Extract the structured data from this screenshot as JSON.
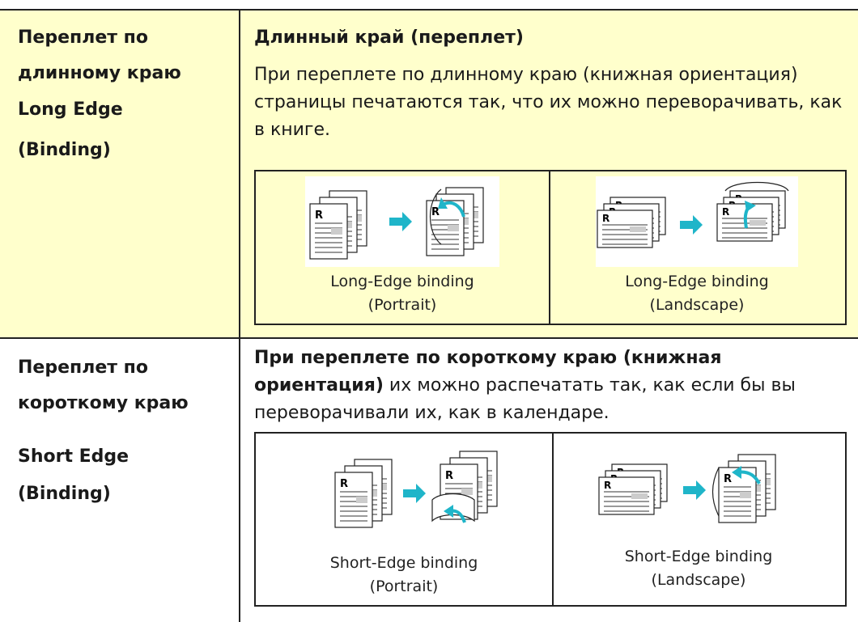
{
  "table": {
    "rows": [
      {
        "label": [
          "Переплет по",
          "длинному краю",
          "Long Edge",
          "(Binding)"
        ],
        "heading": "Длинный край (переплет)",
        "text": "При переплете по длинному краю (книжная ориентация) страницы печатаются так, что их можно переворачивать, как в книге.",
        "figures": [
          {
            "caption": [
              "Long-Edge binding",
              "(Portrait)"
            ]
          },
          {
            "caption": [
              "Long-Edge binding",
              "(Landscape)"
            ]
          }
        ]
      },
      {
        "label": [
          "Переплет по",
          "короткому краю",
          "Short Edge",
          "(Binding)"
        ],
        "text_bold": "При переплете по короткому краю (книжная ориентация)",
        "text": "их можно распечатать так, как если бы вы переворачивали их, как в календаре.",
        "figures": [
          {
            "caption": [
              "Short-Edge binding",
              "(Portrait)"
            ]
          },
          {
            "caption": [
              "Short-Edge binding",
              "(Landscape)"
            ]
          }
        ]
      }
    ]
  }
}
